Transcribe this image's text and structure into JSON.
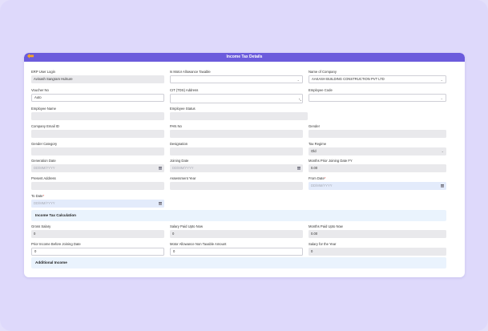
{
  "header": {
    "title": "Income Tax Details",
    "back_icon": "arrow-left-icon",
    "accent": "#6b5bdc"
  },
  "fields": {
    "erp_user_login": {
      "label": "ERP User Login",
      "value": "Avinash Sangram Hulsure"
    },
    "is_motor_allowance_taxable": {
      "label": "Is Motor Allowance Taxable",
      "value": ""
    },
    "name_of_company": {
      "label": "Name of Company",
      "value": "AAKASH BUILDING CONSTRUCTION PVT LTD"
    },
    "voucher_no": {
      "label": "Voucher No",
      "value": "Auto"
    },
    "cit_tds_address": {
      "label": "CIT (TDS) Address",
      "value": ""
    },
    "employee_code": {
      "label": "Employee Code",
      "value": ""
    },
    "employee_name": {
      "label": "Employee Name",
      "value": ""
    },
    "employee_status": {
      "label": "Employee Status",
      "value": ""
    },
    "company_email_id": {
      "label": "Company Email ID",
      "value": ""
    },
    "pan_no": {
      "label": "PAN No",
      "value": ""
    },
    "gender": {
      "label": "Gender",
      "value": ""
    },
    "gender_category": {
      "label": "Gender Category",
      "value": ""
    },
    "designation": {
      "label": "Designation",
      "value": ""
    },
    "tax_regime": {
      "label": "Tax Regime",
      "value": "Old"
    },
    "generation_date": {
      "label": "Generation Date",
      "placeholder": "DD/MM/YYYY"
    },
    "joining_date": {
      "label": "Joining Date",
      "placeholder": "DD/MM/YYYY"
    },
    "months_prior_joining_date_fy": {
      "label": "Months Prior Joining Date FY",
      "value": "0.00"
    },
    "present_address": {
      "label": "Present Address",
      "value": ""
    },
    "assessment_year": {
      "label": "Assessment Year",
      "value": ""
    },
    "from_date": {
      "label": "From Date",
      "required": "*",
      "placeholder": "DD/MM/YYYY"
    },
    "to_date": {
      "label": "To Date",
      "required": "*",
      "placeholder": "DD/MM/YYYY"
    }
  },
  "income_tax_calculation": {
    "title": "Income Tax Calculation",
    "gross_salary": {
      "label": "Gross Salary",
      "value": "0"
    },
    "salary_paid_upto_now": {
      "label": "Salary Paid Upto Now",
      "value": "0"
    },
    "months_paid_upto_now": {
      "label": "Months Paid Upto Now",
      "value": "0.00"
    },
    "prior_income_before_joining_date": {
      "label": "Prior Income Before Joining Date",
      "value": "0"
    },
    "motor_allowance_non_taxable_amount": {
      "label": "Motor Allowance Non Taxable Amount",
      "value": "0"
    },
    "salary_for_the_year": {
      "label": "Salary for the Year",
      "value": "0"
    }
  },
  "additional_income": {
    "title": "Additional Income"
  }
}
